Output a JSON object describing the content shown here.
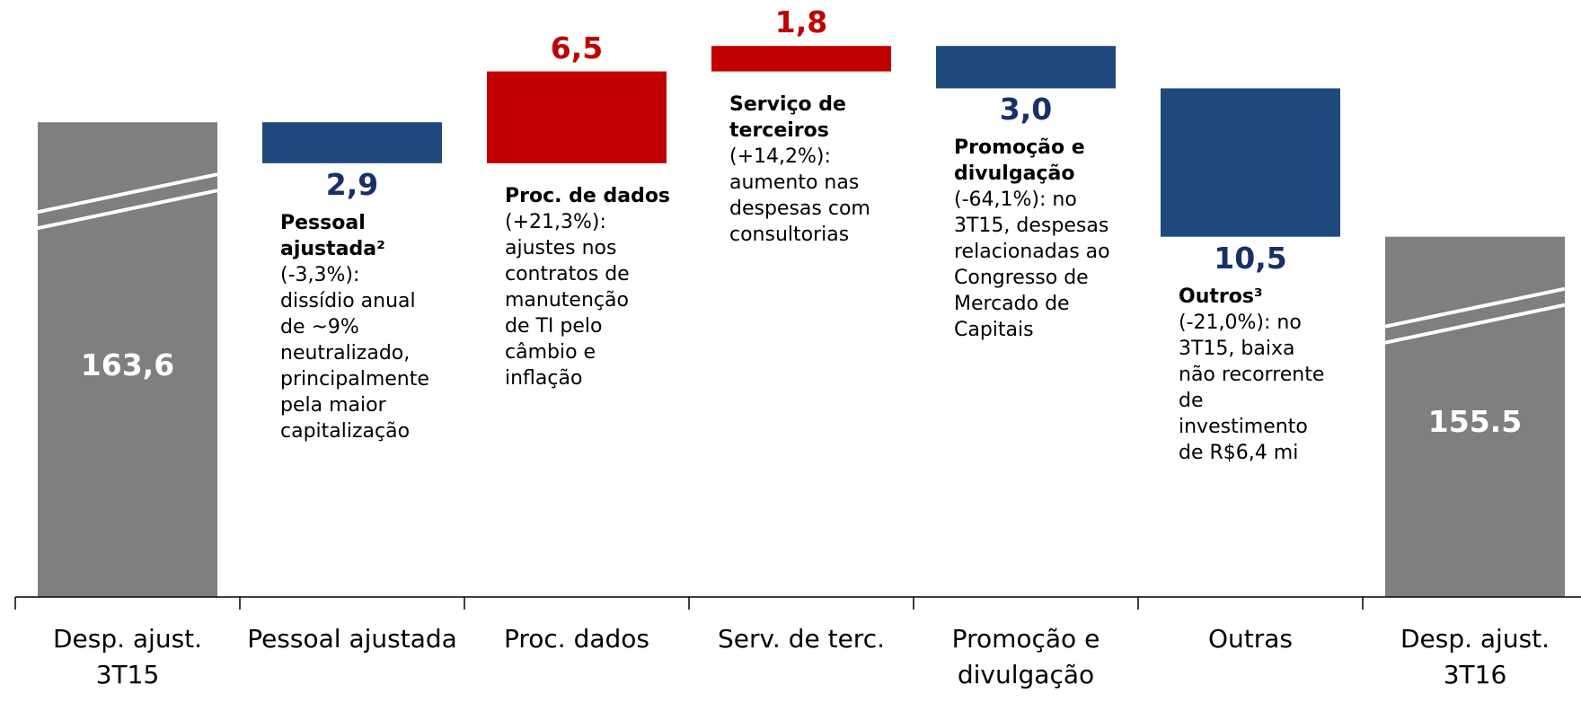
{
  "chart_data": {
    "type": "waterfall",
    "categories": [
      "Desp. ajust.\n3T15",
      "Pessoal ajustada",
      "Proc. dados",
      "Serv. de terc.",
      "Promoção e\ndivulgação",
      "Outras",
      "Desp. ajust.\n3T16"
    ],
    "values": [
      163.6,
      2.9,
      6.5,
      1.8,
      3.0,
      10.5,
      155.5
    ],
    "value_labels": [
      "163,6",
      "2,9",
      "6,5",
      "1,8",
      "3,0",
      "10,5",
      "155.5"
    ],
    "measures": [
      "total",
      "decrease",
      "increase",
      "increase",
      "decrease",
      "decrease",
      "total"
    ],
    "colors": {
      "total": "#7f7f7f",
      "increase": "#c00000",
      "decrease": "#1f497d"
    },
    "label_colors": {
      "total": "#ffffff",
      "increase": "#c00000",
      "decrease": "#17306a"
    },
    "ylim": [
      130,
      172
    ],
    "annotations": [
      null,
      {
        "title": "Pessoal\najustada²",
        "text": "(-3,3%):\ndissídio anual\nde ~9%\nneutralizado,\nprincipalmente\npela maior\ncapitalização"
      },
      {
        "title": "Proc. de dados",
        "text": "(+21,3%):\najustes nos\ncontratos de\nmanutenção\nde TI pelo\ncâmbio e\ninflação"
      },
      {
        "title": "Serviço de\nterceiros",
        "text": "(+14,2%):\naumento nas\ndespesas com\nconsultorias"
      },
      {
        "title": "Promoção e\ndivulgação",
        "text": "(-64,1%): no\n3T15, despesas\nrelacionadas ao\nCongresso de\nMercado de\nCapitais"
      },
      {
        "title": "Outros³",
        "text": "(-21,0%): no\n3T15, baixa\nnão recorrente\nde\ninvestimento\nde R$6,4 mi"
      },
      null
    ]
  }
}
